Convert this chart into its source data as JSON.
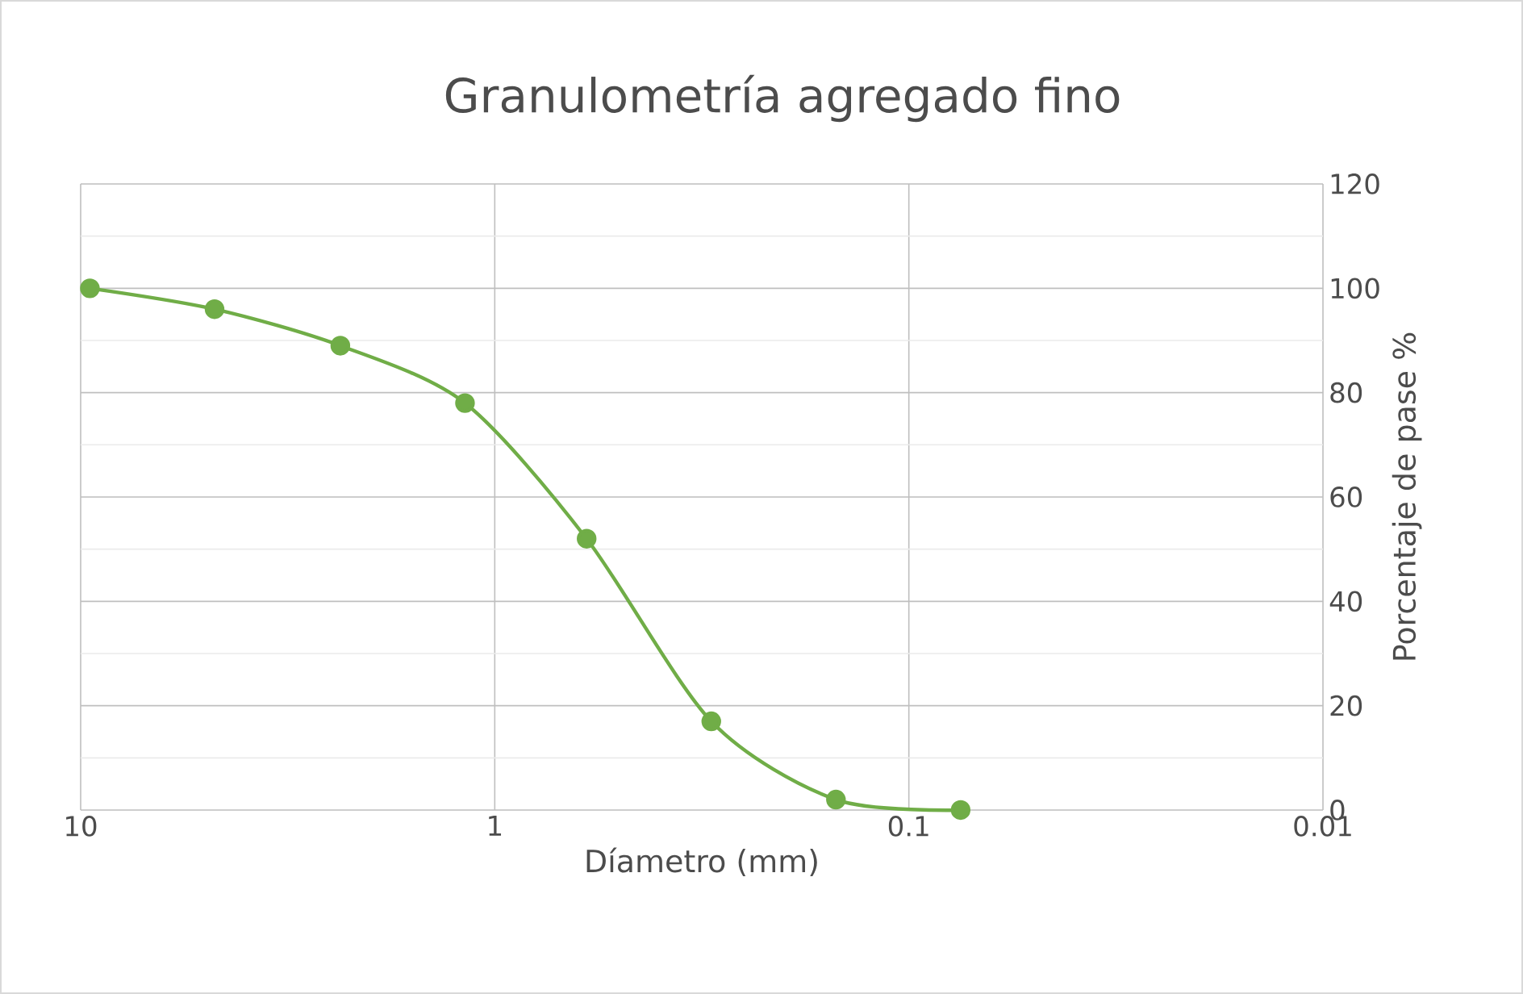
{
  "chart_data": {
    "type": "line",
    "title": "Granulometría agregado fino",
    "xlabel": "Díametro (mm)",
    "ylabel": "Porcentaje de pase %",
    "x": [
      9.5,
      4.75,
      2.36,
      1.18,
      0.6,
      0.3,
      0.15,
      0.075
    ],
    "series": [
      {
        "color": "#70ad47",
        "values": [
          100,
          96,
          89,
          78,
          52,
          17,
          2,
          0
        ]
      }
    ],
    "log": "x",
    "xlim": [
      10,
      0.01
    ],
    "xticks": [
      10,
      1,
      0.1,
      0.01
    ],
    "ylim": [
      0,
      120
    ],
    "yticks": [
      0,
      20,
      40,
      60,
      80,
      100,
      120
    ],
    "grid": true,
    "marker": "circle",
    "line_style": "solid"
  }
}
